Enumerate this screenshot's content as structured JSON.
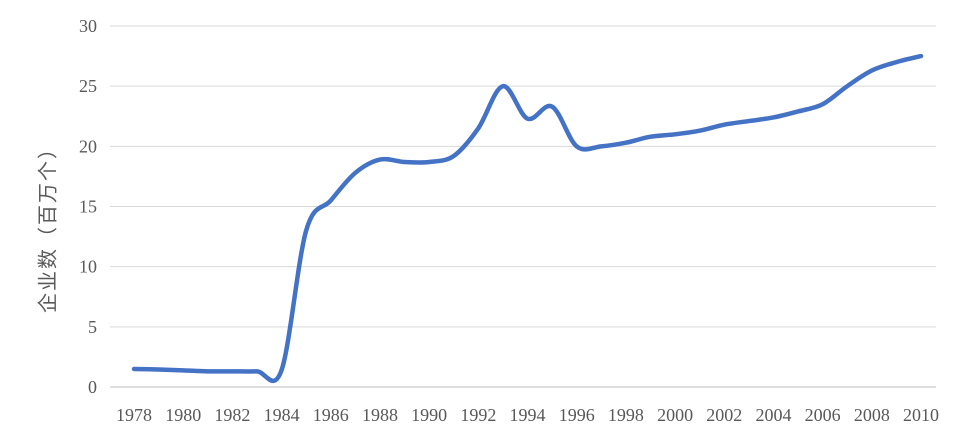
{
  "chart_data": {
    "type": "line",
    "title": "",
    "xlabel": "",
    "ylabel": "企业数（百万个）",
    "ylim": [
      0,
      30
    ],
    "yticks": [
      0,
      5,
      10,
      15,
      20,
      25,
      30
    ],
    "xticks": [
      "1978",
      "1980",
      "1982",
      "1984",
      "1986",
      "1988",
      "1990",
      "1992",
      "1994",
      "1996",
      "1998",
      "2000",
      "2002",
      "2004",
      "2006",
      "2008",
      "2010"
    ],
    "grid": true,
    "legend": "none",
    "series": [
      {
        "color": "#4472c4",
        "x": [
          1978,
          1979,
          1980,
          1981,
          1982,
          1983,
          1984,
          1985,
          1986,
          1987,
          1988,
          1989,
          1990,
          1991,
          1992,
          1993,
          1994,
          1995,
          1996,
          1997,
          1998,
          1999,
          2000,
          2001,
          2002,
          2003,
          2004,
          2005,
          2006,
          2007,
          2008,
          2009,
          2010
        ],
        "y": [
          1.5,
          1.45,
          1.38,
          1.3,
          1.3,
          1.3,
          1.4,
          13.0,
          15.5,
          17.8,
          18.9,
          18.7,
          18.7,
          19.2,
          21.5,
          25.0,
          22.3,
          23.3,
          20.0,
          20.0,
          20.3,
          20.8,
          21.0,
          21.3,
          21.8,
          22.1,
          22.4,
          22.9,
          23.5,
          25.0,
          26.3,
          27.0,
          27.5
        ]
      }
    ]
  }
}
